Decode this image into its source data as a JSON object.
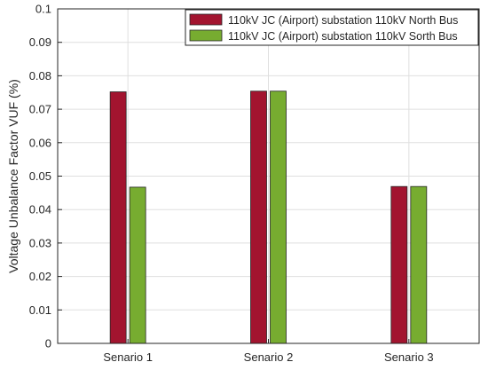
{
  "chart_data": {
    "type": "bar",
    "categories": [
      "Senario 1",
      "Senario 2",
      "Senario 3"
    ],
    "series": [
      {
        "name": "110kV JC (Airport) substation 110kV North Bus",
        "values": [
          0.0752,
          0.0754,
          0.0469
        ],
        "color": "#a2142f"
      },
      {
        "name": "110kV JC (Airport) substation 110kV Sorth Bus",
        "values": [
          0.0467,
          0.0754,
          0.0469
        ],
        "color": "#77ac30"
      }
    ],
    "xlabel": "",
    "ylabel": "Voltage Unbalance Factor VUF (%)",
    "ylim": [
      0,
      0.1
    ],
    "yticks": [
      "0",
      "0.01",
      "0.02",
      "0.03",
      "0.04",
      "0.05",
      "0.06",
      "0.07",
      "0.08",
      "0.09",
      "0.1"
    ],
    "grid": true,
    "legend_position": "top-right"
  }
}
